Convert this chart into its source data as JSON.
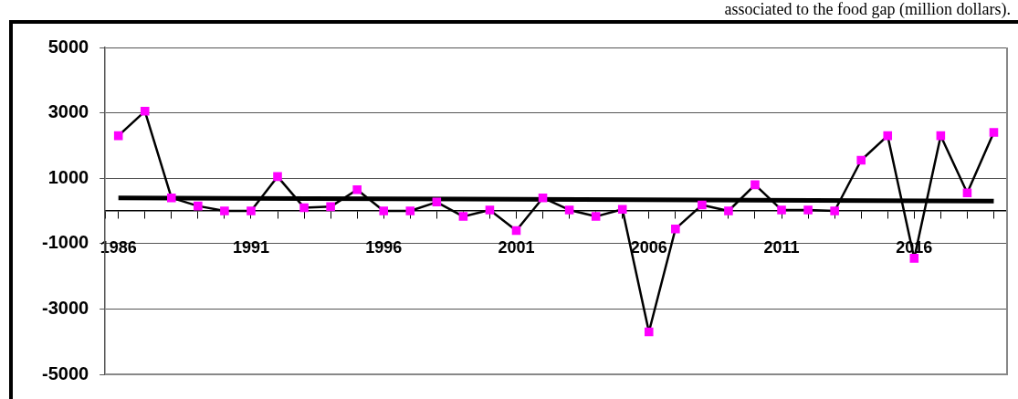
{
  "chart_data": {
    "type": "line",
    "title": "associated to the food gap (million dollars).",
    "x": [
      1986,
      1987,
      1988,
      1989,
      1990,
      1991,
      1992,
      1993,
      1994,
      1995,
      1996,
      1997,
      1998,
      1999,
      2000,
      2001,
      2002,
      2003,
      2004,
      2005,
      2006,
      2007,
      2008,
      2009,
      2010,
      2011,
      2012,
      2013,
      2014,
      2015,
      2016,
      2017,
      2018,
      2019
    ],
    "series": [
      {
        "color": "#ff00ff",
        "values": [
          2300,
          3050,
          400,
          150,
          0,
          0,
          1050,
          100,
          130,
          650,
          0,
          0,
          270,
          -170,
          30,
          -600,
          400,
          30,
          -170,
          50,
          -3700,
          -550,
          180,
          0,
          800,
          30,
          30,
          0,
          1550,
          2300,
          -1450,
          2300,
          550,
          2400
        ]
      },
      {
        "type": "line",
        "color": "#000000",
        "marker": "none",
        "x": [
          1986,
          2019
        ],
        "values": [
          400,
          300
        ]
      }
    ],
    "xlim": [
      1985.5,
      2019.5
    ],
    "xticks": [
      {
        "value": 1985.5,
        "label": null
      },
      1986,
      {
        "value": 1987,
        "label": null
      },
      {
        "value": 1988,
        "label": null
      },
      {
        "value": 1989,
        "label": null
      },
      {
        "value": 1990,
        "label": null
      },
      1991,
      {
        "value": 1992,
        "label": null
      },
      {
        "value": 1993,
        "label": null
      },
      {
        "value": 1994,
        "label": null
      },
      {
        "value": 1995,
        "label": null
      },
      1996,
      {
        "value": 1997,
        "label": null
      },
      {
        "value": 1998,
        "label": null
      },
      {
        "value": 1999,
        "label": null
      },
      {
        "value": 2000,
        "label": null
      },
      2001,
      {
        "value": 2002,
        "label": null
      },
      {
        "value": 2003,
        "label": null
      },
      {
        "value": 2004,
        "label": null
      },
      {
        "value": 2005,
        "label": null
      },
      2006,
      {
        "value": 2007,
        "label": null
      },
      {
        "value": 2008,
        "label": null
      },
      {
        "value": 2009,
        "label": null
      },
      {
        "value": 2010,
        "label": null
      },
      2011,
      {
        "value": 2012,
        "label": null
      },
      {
        "value": 2013,
        "label": null
      },
      {
        "value": 2014,
        "label": null
      },
      {
        "value": 2015,
        "label": null
      },
      2016,
      {
        "value": 2017,
        "label": null
      },
      {
        "value": 2018,
        "label": null
      },
      {
        "value": 2019,
        "label": null
      }
    ],
    "ylim": [
      -5000,
      5000
    ],
    "yticks": [
      -5000,
      -3000,
      -1000,
      1000,
      3000,
      5000
    ],
    "grid": "y",
    "legend": false,
    "marker": "square",
    "line_style": "solid"
  }
}
